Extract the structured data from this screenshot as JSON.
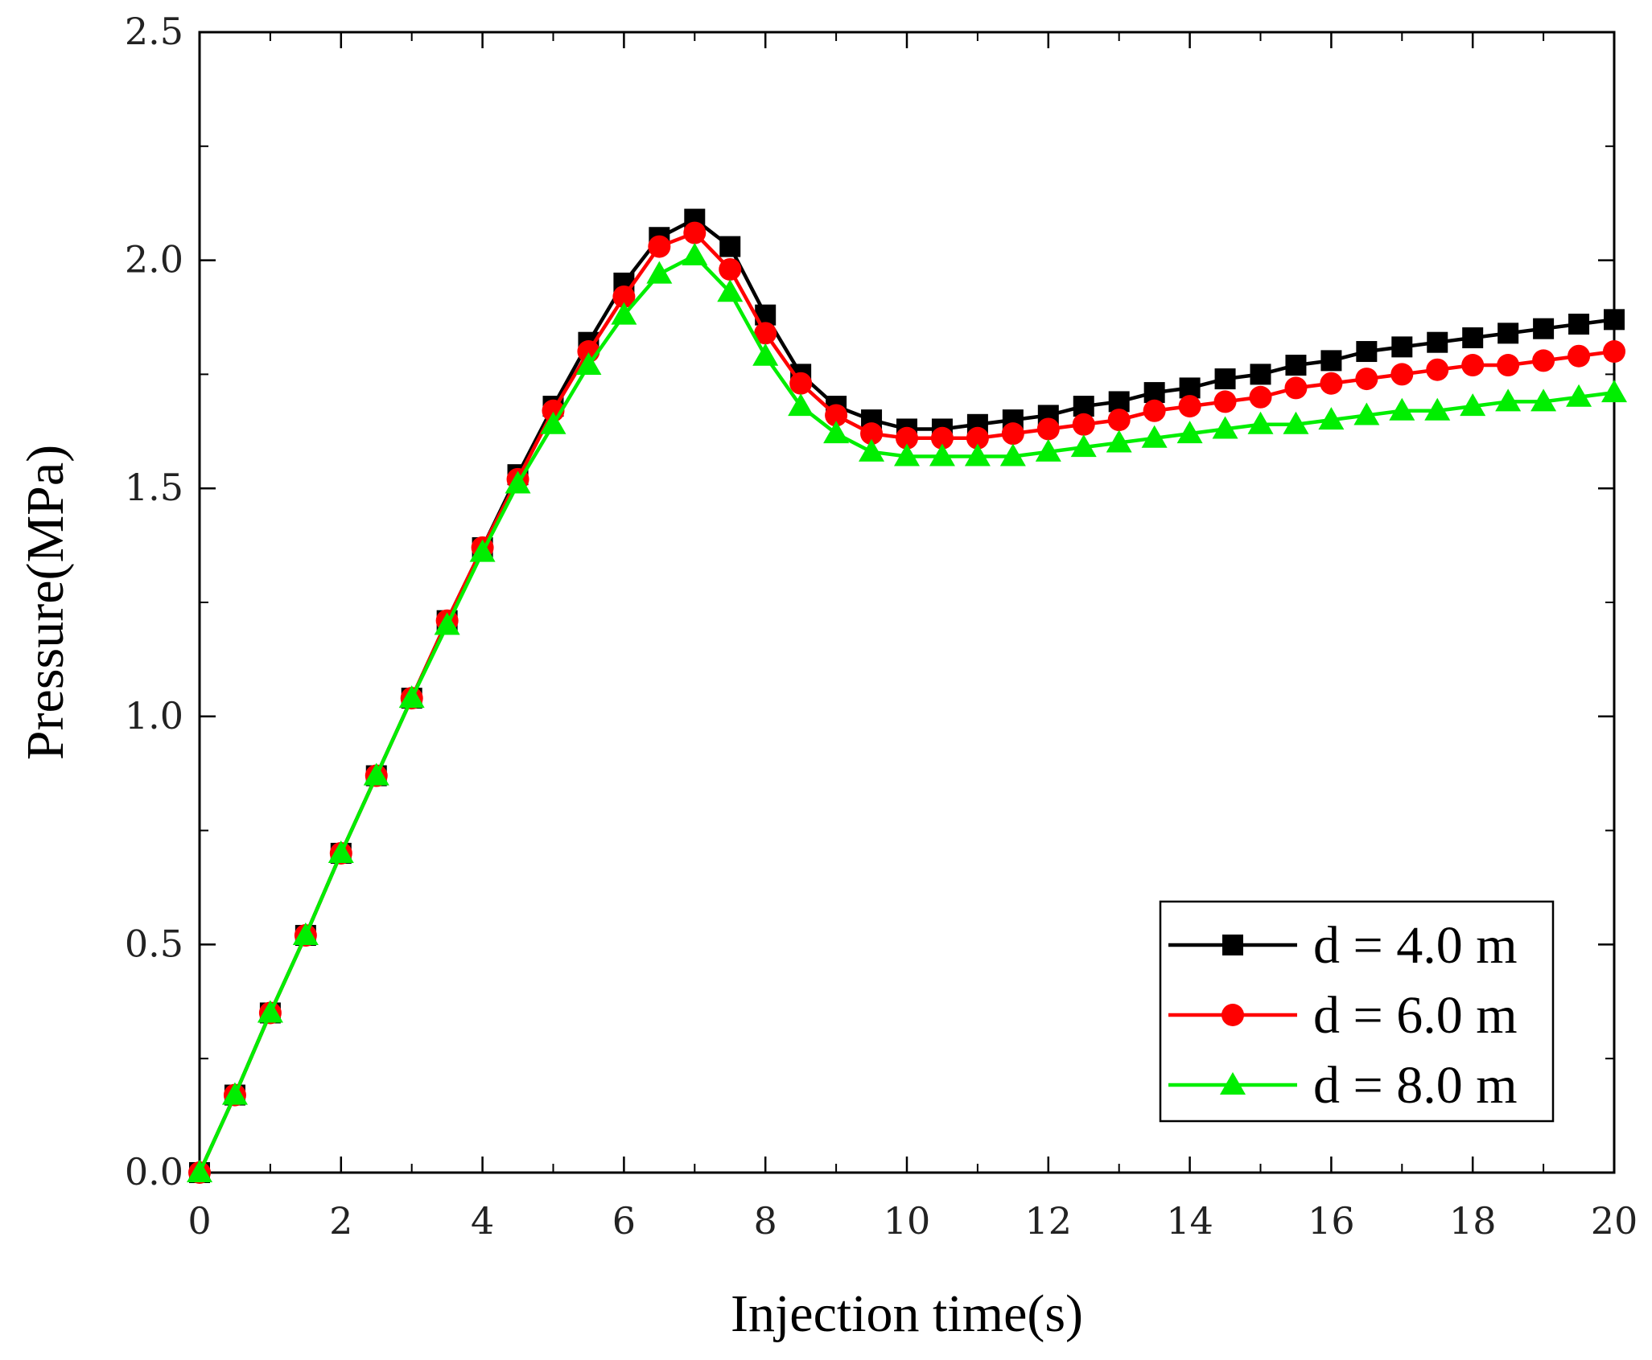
{
  "chart_data": {
    "type": "line",
    "title": "",
    "xlabel": "Injection time(s)",
    "ylabel": "Pressure(MPa)",
    "xlim": [
      0,
      20
    ],
    "ylim": [
      0,
      2.5
    ],
    "xticks": [
      0,
      2,
      4,
      6,
      8,
      10,
      12,
      14,
      16,
      18,
      20
    ],
    "xtick_labels": [
      "0",
      "2",
      "4",
      "6",
      "8",
      "10",
      "12",
      "14",
      "16",
      "18",
      "20"
    ],
    "yticks": [
      0,
      0.5,
      1.0,
      1.5,
      2.0,
      2.5
    ],
    "ytick_labels": [
      "0.0",
      "0.5",
      "1.0",
      "1.5",
      "2.0",
      "2.5"
    ],
    "grid": false,
    "legend_position": "lower-right",
    "x": [
      0,
      0.5,
      1,
      1.5,
      2,
      2.5,
      3,
      3.5,
      4,
      4.5,
      5,
      5.5,
      6,
      6.5,
      7,
      7.5,
      8,
      8.5,
      9,
      9.5,
      10,
      10.5,
      11,
      11.5,
      12,
      12.5,
      13,
      13.5,
      14,
      14.5,
      15,
      15.5,
      16,
      16.5,
      17,
      17.5,
      18,
      18.5,
      19,
      19.5,
      20
    ],
    "series": [
      {
        "name": "d = 4.0 m",
        "color": "#000000",
        "marker": "square",
        "values": [
          0.0,
          0.17,
          0.35,
          0.52,
          0.7,
          0.87,
          1.04,
          1.21,
          1.37,
          1.53,
          1.68,
          1.82,
          1.95,
          2.05,
          2.09,
          2.03,
          1.88,
          1.75,
          1.68,
          1.65,
          1.63,
          1.63,
          1.64,
          1.65,
          1.66,
          1.68,
          1.69,
          1.71,
          1.72,
          1.74,
          1.75,
          1.77,
          1.78,
          1.8,
          1.81,
          1.82,
          1.83,
          1.84,
          1.85,
          1.86,
          1.87
        ]
      },
      {
        "name": "d = 6.0 m",
        "color": "#ff0000",
        "marker": "circle",
        "values": [
          0.0,
          0.17,
          0.35,
          0.52,
          0.7,
          0.87,
          1.04,
          1.21,
          1.37,
          1.52,
          1.67,
          1.8,
          1.92,
          2.03,
          2.06,
          1.98,
          1.84,
          1.73,
          1.66,
          1.62,
          1.61,
          1.61,
          1.61,
          1.62,
          1.63,
          1.64,
          1.65,
          1.67,
          1.68,
          1.69,
          1.7,
          1.72,
          1.73,
          1.74,
          1.75,
          1.76,
          1.77,
          1.77,
          1.78,
          1.79,
          1.8
        ]
      },
      {
        "name": "d = 8.0 m",
        "color": "#00ee00",
        "marker": "triangle",
        "values": [
          0.0,
          0.17,
          0.35,
          0.52,
          0.7,
          0.87,
          1.04,
          1.2,
          1.36,
          1.51,
          1.64,
          1.77,
          1.88,
          1.97,
          2.01,
          1.93,
          1.79,
          1.68,
          1.62,
          1.58,
          1.57,
          1.57,
          1.57,
          1.57,
          1.58,
          1.59,
          1.6,
          1.61,
          1.62,
          1.63,
          1.64,
          1.64,
          1.65,
          1.66,
          1.67,
          1.67,
          1.68,
          1.69,
          1.69,
          1.7,
          1.71
        ]
      }
    ]
  }
}
